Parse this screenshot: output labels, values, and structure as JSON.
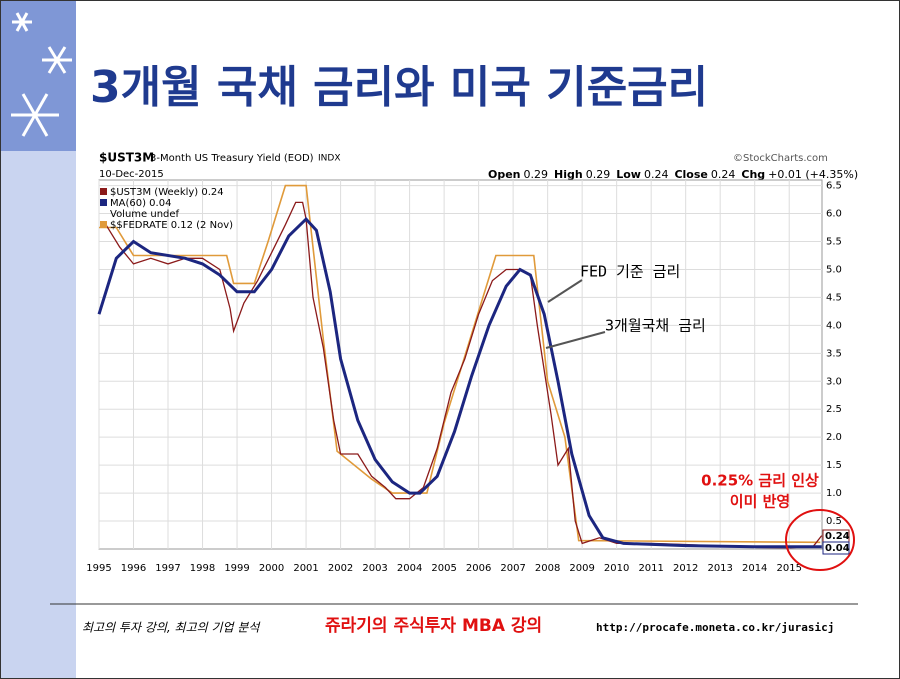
{
  "slide_title": "3개월 국채 금리와 미국 기준금리",
  "chart_data": {
    "type": "line",
    "title": "$UST3M",
    "subtitle": "3-Month US Treasury Yield (EOD)",
    "exchange": "INDX",
    "date": "10-Dec-2015",
    "source": "©StockCharts.com",
    "stats": [
      {
        "label": "Open",
        "value": "0.29"
      },
      {
        "label": "High",
        "value": "0.29"
      },
      {
        "label": "Low",
        "value": "0.24"
      },
      {
        "label": "Close",
        "value": "0.24"
      },
      {
        "label": "Chg",
        "value": "+0.01 (+4.35%)"
      }
    ],
    "legend_extra": "Volume undef",
    "xlim": [
      1995,
      2015.95
    ],
    "xticks": [
      1995,
      1996,
      1997,
      1998,
      1999,
      2000,
      2001,
      2002,
      2003,
      2004,
      2005,
      2006,
      2007,
      2008,
      2009,
      2010,
      2011,
      2012,
      2013,
      2014,
      2015
    ],
    "ylim": [
      0,
      6.6
    ],
    "yticks": [
      0.5,
      {
        "value": 1,
        "label": "1.0"
      },
      1.5,
      {
        "value": 2,
        "label": "2.0"
      },
      2.5,
      {
        "value": 3,
        "label": "3.0"
      },
      3.5,
      {
        "value": 4,
        "label": "4.0"
      },
      4.5,
      {
        "value": 5,
        "label": "5.0"
      },
      5.5,
      {
        "value": 6,
        "label": "6.0"
      },
      6.5
    ],
    "grid": true,
    "series": [
      {
        "name": "$UST3M (Weekly) 0.24",
        "color": "#8b1a1a",
        "width": 1.3,
        "x": [
          1995.2,
          1995.6,
          1996.0,
          1996.5,
          1997.0,
          1997.5,
          1998.0,
          1998.5,
          1998.8,
          1998.9,
          1999.2,
          1999.6,
          2000.0,
          2000.4,
          2000.7,
          2000.9,
          2001.0,
          2001.2,
          2001.5,
          2001.8,
          2002.0,
          2002.5,
          2002.9,
          2003.3,
          2003.6,
          2004.0,
          2004.4,
          2004.8,
          2005.2,
          2005.6,
          2006.0,
          2006.4,
          2006.8,
          2007.2,
          2007.5,
          2007.7,
          2007.9,
          2008.1,
          2008.3,
          2008.6,
          2008.8,
          2009.0,
          2009.5,
          2010.0,
          2011.0,
          2012.0,
          2013.0,
          2014.0,
          2015.0,
          2015.7,
          2015.94
        ],
        "values": [
          5.8,
          5.4,
          5.1,
          5.2,
          5.1,
          5.2,
          5.2,
          5.0,
          4.3,
          3.9,
          4.4,
          4.8,
          5.3,
          5.8,
          6.2,
          6.2,
          5.9,
          4.5,
          3.6,
          2.3,
          1.7,
          1.7,
          1.3,
          1.1,
          0.9,
          0.9,
          1.1,
          1.8,
          2.8,
          3.4,
          4.2,
          4.8,
          5.0,
          5.0,
          4.9,
          4.0,
          3.2,
          2.4,
          1.5,
          1.8,
          0.5,
          0.1,
          0.2,
          0.1,
          0.1,
          0.08,
          0.05,
          0.03,
          0.02,
          0.05,
          0.24
        ]
      },
      {
        "name": "MA(60) 0.04",
        "color": "#1c2680",
        "width": 3,
        "x": [
          1995.0,
          1995.5,
          1996.0,
          1996.5,
          1997.5,
          1998.0,
          1998.5,
          1999.0,
          1999.5,
          2000.0,
          2000.5,
          2001.0,
          2001.3,
          2001.7,
          2002.0,
          2002.5,
          2003.0,
          2003.5,
          2004.0,
          2004.3,
          2004.8,
          2005.3,
          2005.8,
          2006.3,
          2006.8,
          2007.2,
          2007.5,
          2007.9,
          2008.3,
          2008.7,
          2009.2,
          2009.6,
          2010.2,
          2012.0,
          2014.0,
          2015.94
        ],
        "values": [
          4.2,
          5.2,
          5.5,
          5.3,
          5.2,
          5.1,
          4.9,
          4.6,
          4.6,
          5.0,
          5.6,
          5.9,
          5.7,
          4.6,
          3.4,
          2.3,
          1.6,
          1.2,
          1.0,
          1.0,
          1.3,
          2.1,
          3.1,
          4.0,
          4.7,
          5.0,
          4.9,
          4.2,
          3.0,
          1.7,
          0.6,
          0.2,
          0.1,
          0.06,
          0.04,
          0.04
        ]
      },
      {
        "name": "$$FEDRATE 0.12 (2 Nov)",
        "color": "#e09a3a",
        "width": 1.6,
        "x": [
          1995.0,
          1995.5,
          1996.0,
          1998.7,
          1998.9,
          1999.5,
          1999.9,
          2000.4,
          2001.0,
          2001.5,
          2001.9,
          2002.9,
          2003.5,
          2004.5,
          2005.0,
          2005.5,
          2006.0,
          2006.5,
          2007.6,
          2008.0,
          2008.5,
          2008.9,
          2015.9
        ],
        "values": [
          5.75,
          5.75,
          5.25,
          5.25,
          4.75,
          4.75,
          5.5,
          6.5,
          6.5,
          3.75,
          1.75,
          1.25,
          1.0,
          1.0,
          2.25,
          3.25,
          4.25,
          5.25,
          5.25,
          3.0,
          2.0,
          0.15,
          0.12
        ]
      }
    ],
    "end_labels": [
      0.24,
      0.04
    ],
    "annotations": [
      "FED 기준 금리",
      "3개월국채 금리",
      "0.25% 금리 인상",
      "이미 반영"
    ]
  },
  "footer": {
    "slogan": "최고의 투자 강의, 최고의 기업 분석",
    "course": "쥬라기의 주식투자 MBA 강의",
    "url": "http://procafe.moneta.co.kr/jurasicj"
  }
}
